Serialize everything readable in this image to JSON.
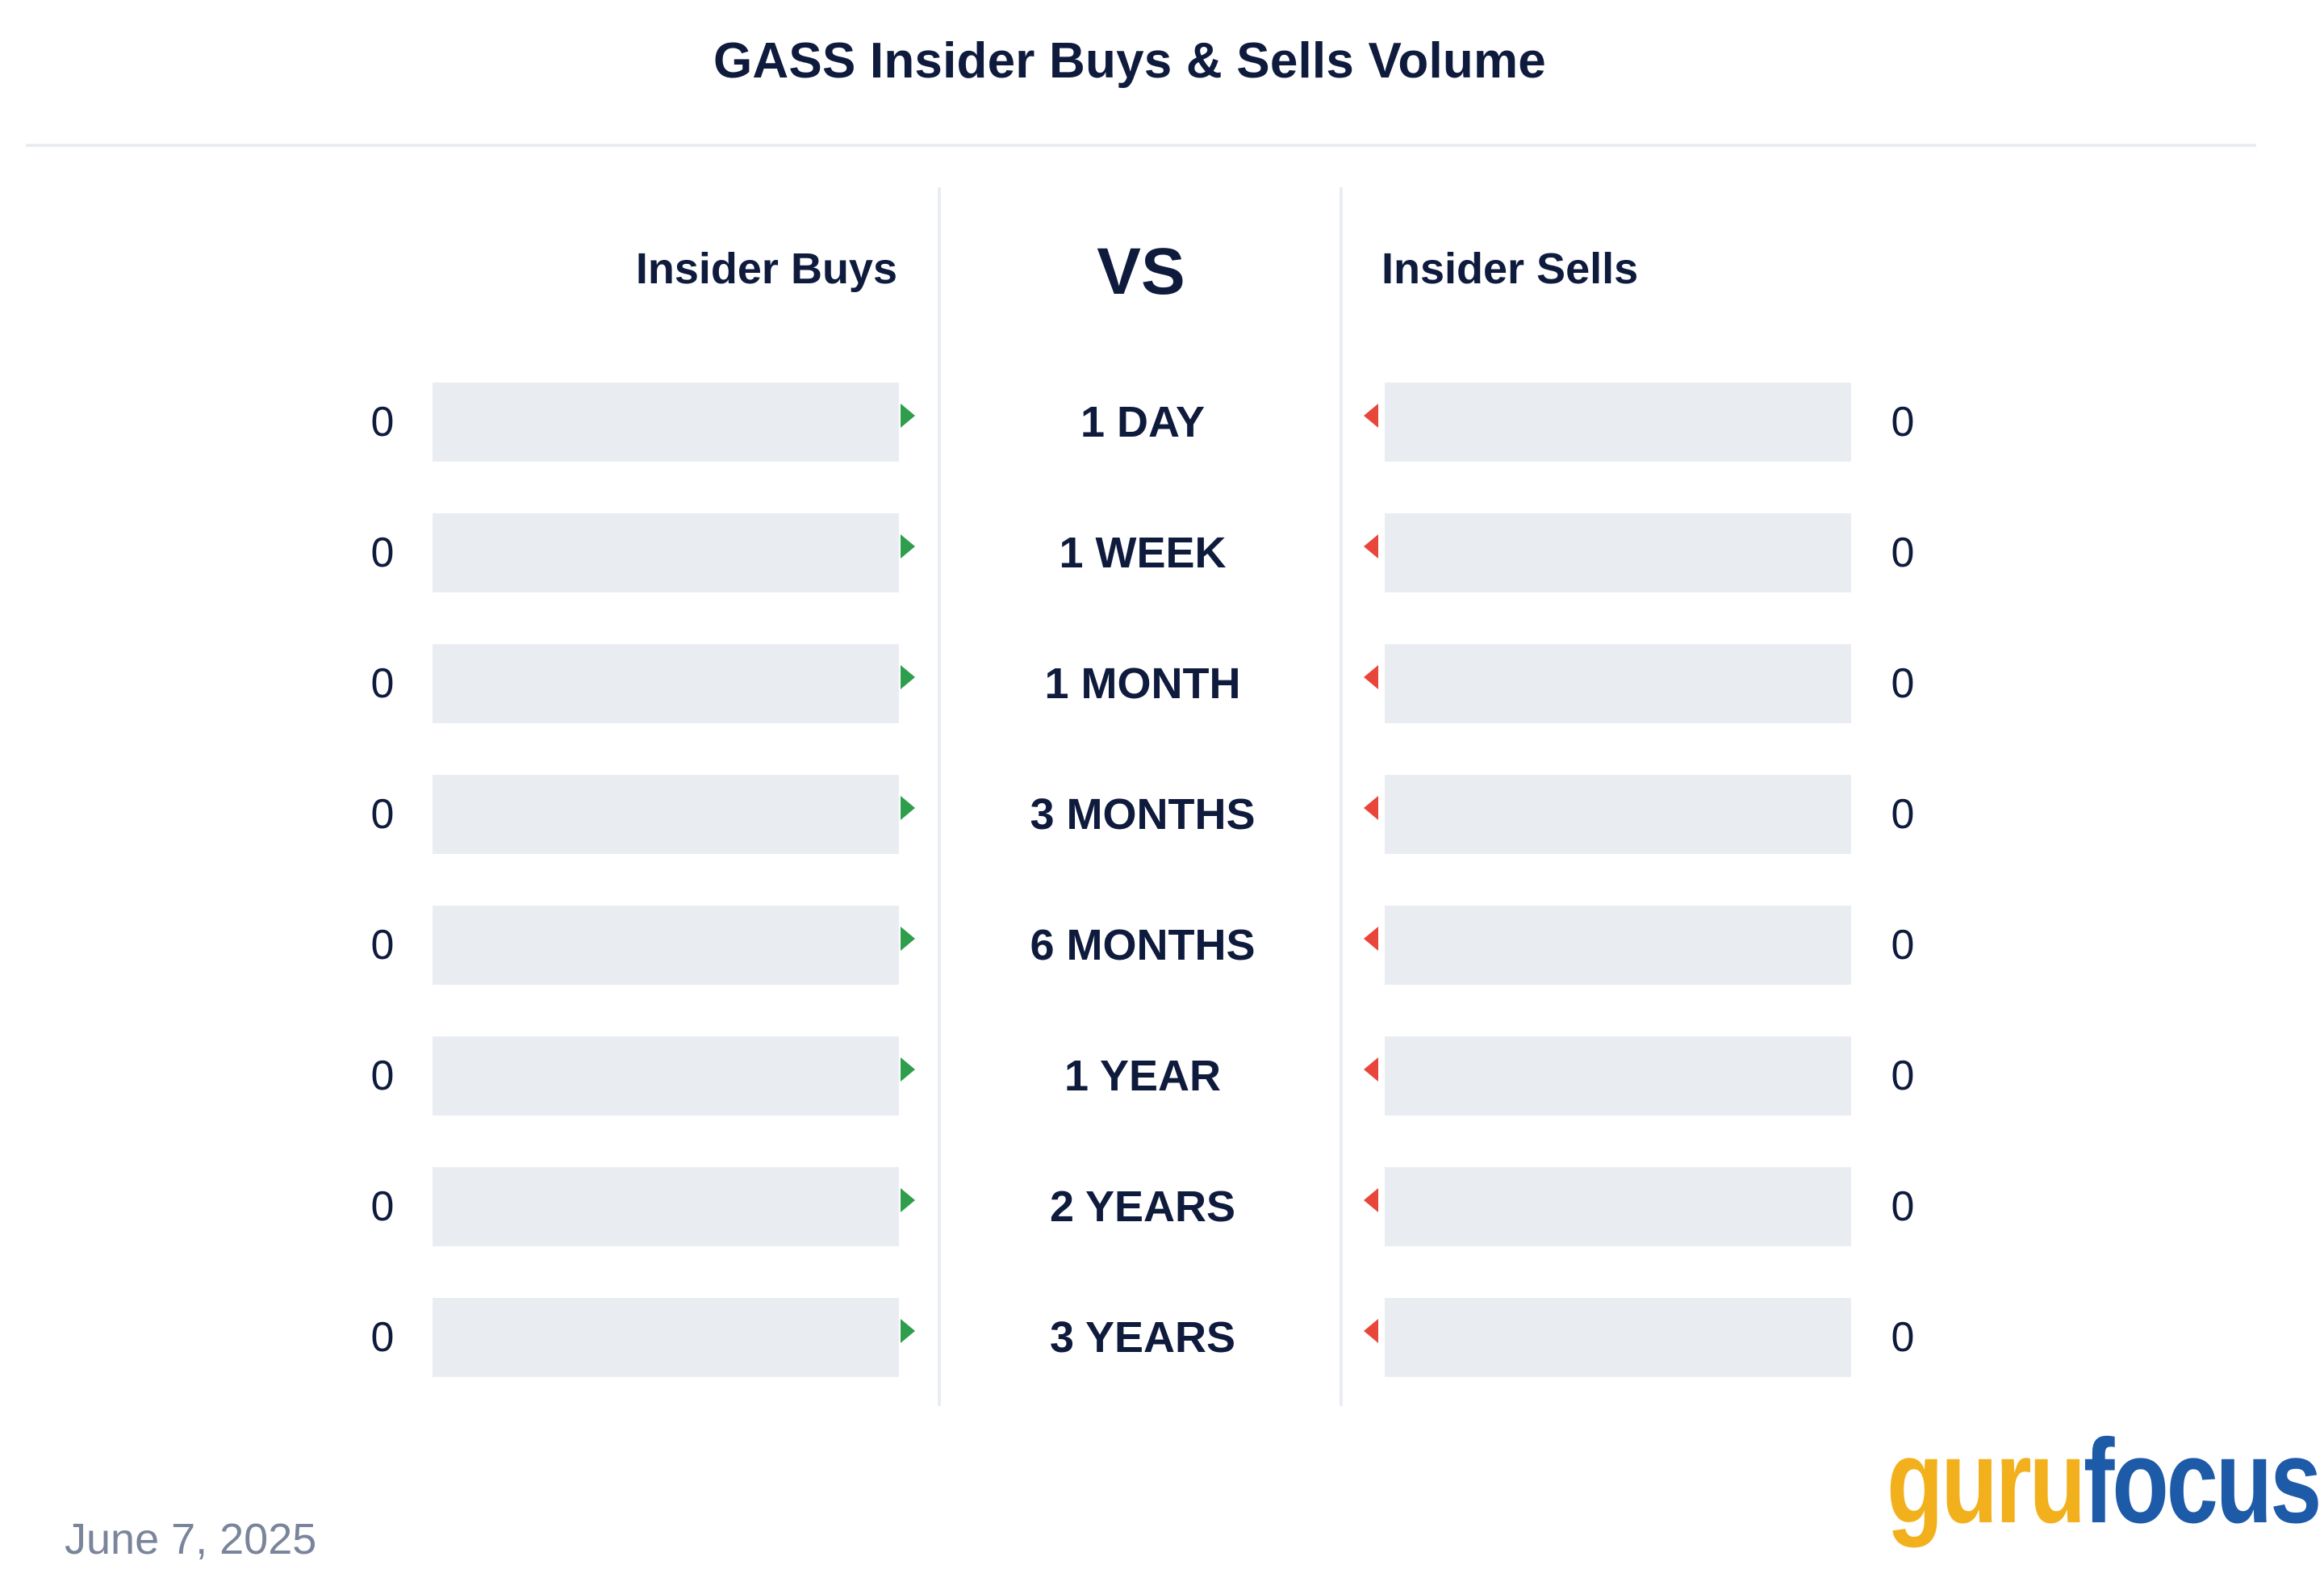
{
  "chart_data": {
    "type": "bar",
    "title": "GASS Insider Buys & Sells Volume",
    "left_header": "Insider Buys",
    "center_header": "VS",
    "right_header": "Insider Sells",
    "categories": [
      "1 DAY",
      "1 WEEK",
      "1 MONTH",
      "3 MONTHS",
      "6 MONTHS",
      "1 YEAR",
      "2 YEARS",
      "3 YEARS"
    ],
    "series": [
      {
        "name": "Insider Buys",
        "color": "#2e9e4d",
        "values": [
          0,
          0,
          0,
          0,
          0,
          0,
          0,
          0
        ]
      },
      {
        "name": "Insider Sells",
        "color": "#e8463a",
        "values": [
          0,
          0,
          0,
          0,
          0,
          0,
          0,
          0
        ]
      }
    ]
  },
  "footer": {
    "date": "June 7, 2025",
    "logo_part1": "guru",
    "logo_part2": "focus"
  },
  "colors": {
    "text": "#0f1b3d",
    "track": "#e9edf2",
    "buy": "#2e9e4d",
    "sell": "#e8463a",
    "logo_guru": "#f2b11c",
    "logo_focus": "#1d5aa8"
  }
}
